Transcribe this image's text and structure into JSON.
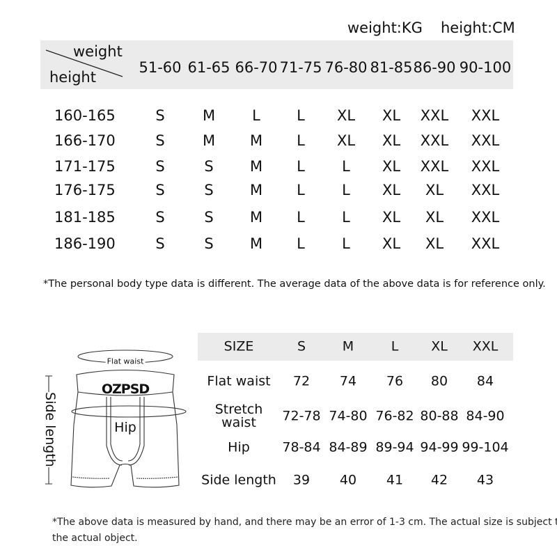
{
  "units": {
    "weight": "weight:KG",
    "height": "height:CM"
  },
  "size_by_height_weight": {
    "corner": {
      "weight": "weight",
      "height": "height"
    },
    "weight_columns": [
      "51-60",
      "61-65",
      "66-70",
      "71-75",
      "76-80",
      "81-85",
      "86-90",
      "90-100"
    ],
    "rows": [
      {
        "height": "160-165",
        "sizes": [
          "S",
          "M",
          "L",
          "L",
          "XL",
          "XL",
          "XXL",
          "XXL"
        ]
      },
      {
        "height": "166-170",
        "sizes": [
          "S",
          "M",
          "M",
          "L",
          "XL",
          "XL",
          "XXL",
          "XXL"
        ]
      },
      {
        "height": "171-175",
        "sizes": [
          "S",
          "S",
          "M",
          "L",
          "L",
          "XL",
          "XXL",
          "XXL"
        ]
      },
      {
        "height": "176-175",
        "sizes": [
          "S",
          "S",
          "M",
          "L",
          "L",
          "XL",
          "XL",
          "XXL"
        ]
      },
      {
        "height": "181-185",
        "sizes": [
          "S",
          "S",
          "M",
          "L",
          "L",
          "XL",
          "XL",
          "XXL"
        ]
      },
      {
        "height": "186-190",
        "sizes": [
          "S",
          "S",
          "M",
          "L",
          "L",
          "XL",
          "XL",
          "XXL"
        ]
      }
    ],
    "footnote": "*The personal body type data is different. The average data of the above data is for reference only."
  },
  "diagram": {
    "brand": "OZPSD",
    "flat_waist": "Flat waist",
    "hip": "Hip",
    "side_length": "Side length"
  },
  "measurements": {
    "header": [
      "SIZE",
      "S",
      "M",
      "L",
      "XL",
      "XXL"
    ],
    "rows": [
      {
        "label": "Flat waist",
        "values": [
          "72",
          "74",
          "76",
          "80",
          "84"
        ]
      },
      {
        "label": "Stretch\nwaist",
        "values": [
          "72-78",
          "74-80",
          "76-82",
          "80-88",
          "84-90"
        ]
      },
      {
        "label": "Hip",
        "values": [
          "78-84",
          "84-89",
          "89-94",
          "94-99",
          "99-104"
        ]
      },
      {
        "label": "Side length",
        "values": [
          "39",
          "40",
          "41",
          "42",
          "43"
        ]
      }
    ],
    "footnote_line1": "*The above data is measured by hand, and there may be an error of 1-3 cm. The actual size is subject to",
    "footnote_line2": "the actual object."
  }
}
